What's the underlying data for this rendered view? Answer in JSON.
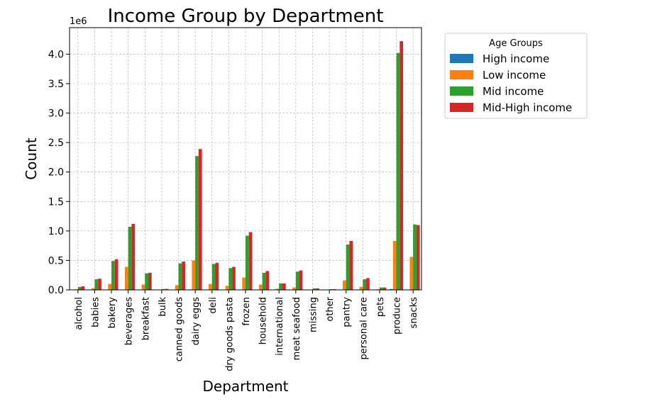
{
  "chart_data": {
    "type": "bar",
    "title": "Income Group by Department",
    "xlabel": "Department",
    "ylabel": "Count",
    "y_scale_label": "1e6",
    "ylim": [
      0,
      4.45
    ],
    "y_ticks": [
      "0.0",
      "0.5",
      "1.0",
      "1.5",
      "2.0",
      "2.5",
      "3.0",
      "3.5",
      "4.0"
    ],
    "grid": true,
    "legend": {
      "title": "Age Groups",
      "placement": "outside-right"
    },
    "categories": [
      "alcohol",
      "babies",
      "bakery",
      "beverages",
      "breakfast",
      "bulk",
      "canned goods",
      "dairy eggs",
      "deli",
      "dry goods pasta",
      "frozen",
      "household",
      "international",
      "meat seafood",
      "missing",
      "other",
      "pantry",
      "personal care",
      "pets",
      "produce",
      "snacks"
    ],
    "series": [
      {
        "name": "High income",
        "color": "#1f77b4",
        "values": [
          0.002,
          0.001,
          0.003,
          0.005,
          0.002,
          0.0003,
          0.004,
          0.008,
          0.003,
          0.002,
          0.004,
          0.002,
          0.001,
          0.002,
          0.0005,
          0.0002,
          0.004,
          0.002,
          0.001,
          0.015,
          0.006
        ]
      },
      {
        "name": "Low income",
        "color": "#ff7f0e",
        "values": [
          0.01,
          0.03,
          0.1,
          0.39,
          0.09,
          0.005,
          0.08,
          0.5,
          0.1,
          0.07,
          0.21,
          0.09,
          0.02,
          0.04,
          0.005,
          0.003,
          0.16,
          0.05,
          0.01,
          0.83,
          0.56
        ]
      },
      {
        "name": "Mid income",
        "color": "#2ca02c",
        "values": [
          0.05,
          0.18,
          0.49,
          1.07,
          0.28,
          0.015,
          0.45,
          2.27,
          0.44,
          0.37,
          0.92,
          0.29,
          0.11,
          0.31,
          0.025,
          0.012,
          0.77,
          0.18,
          0.04,
          4.02,
          1.11
        ]
      },
      {
        "name": "Mid-High income",
        "color": "#d62728",
        "values": [
          0.06,
          0.19,
          0.52,
          1.12,
          0.29,
          0.016,
          0.48,
          2.39,
          0.46,
          0.39,
          0.98,
          0.32,
          0.11,
          0.33,
          0.026,
          0.013,
          0.83,
          0.2,
          0.04,
          4.22,
          1.1
        ]
      }
    ]
  }
}
